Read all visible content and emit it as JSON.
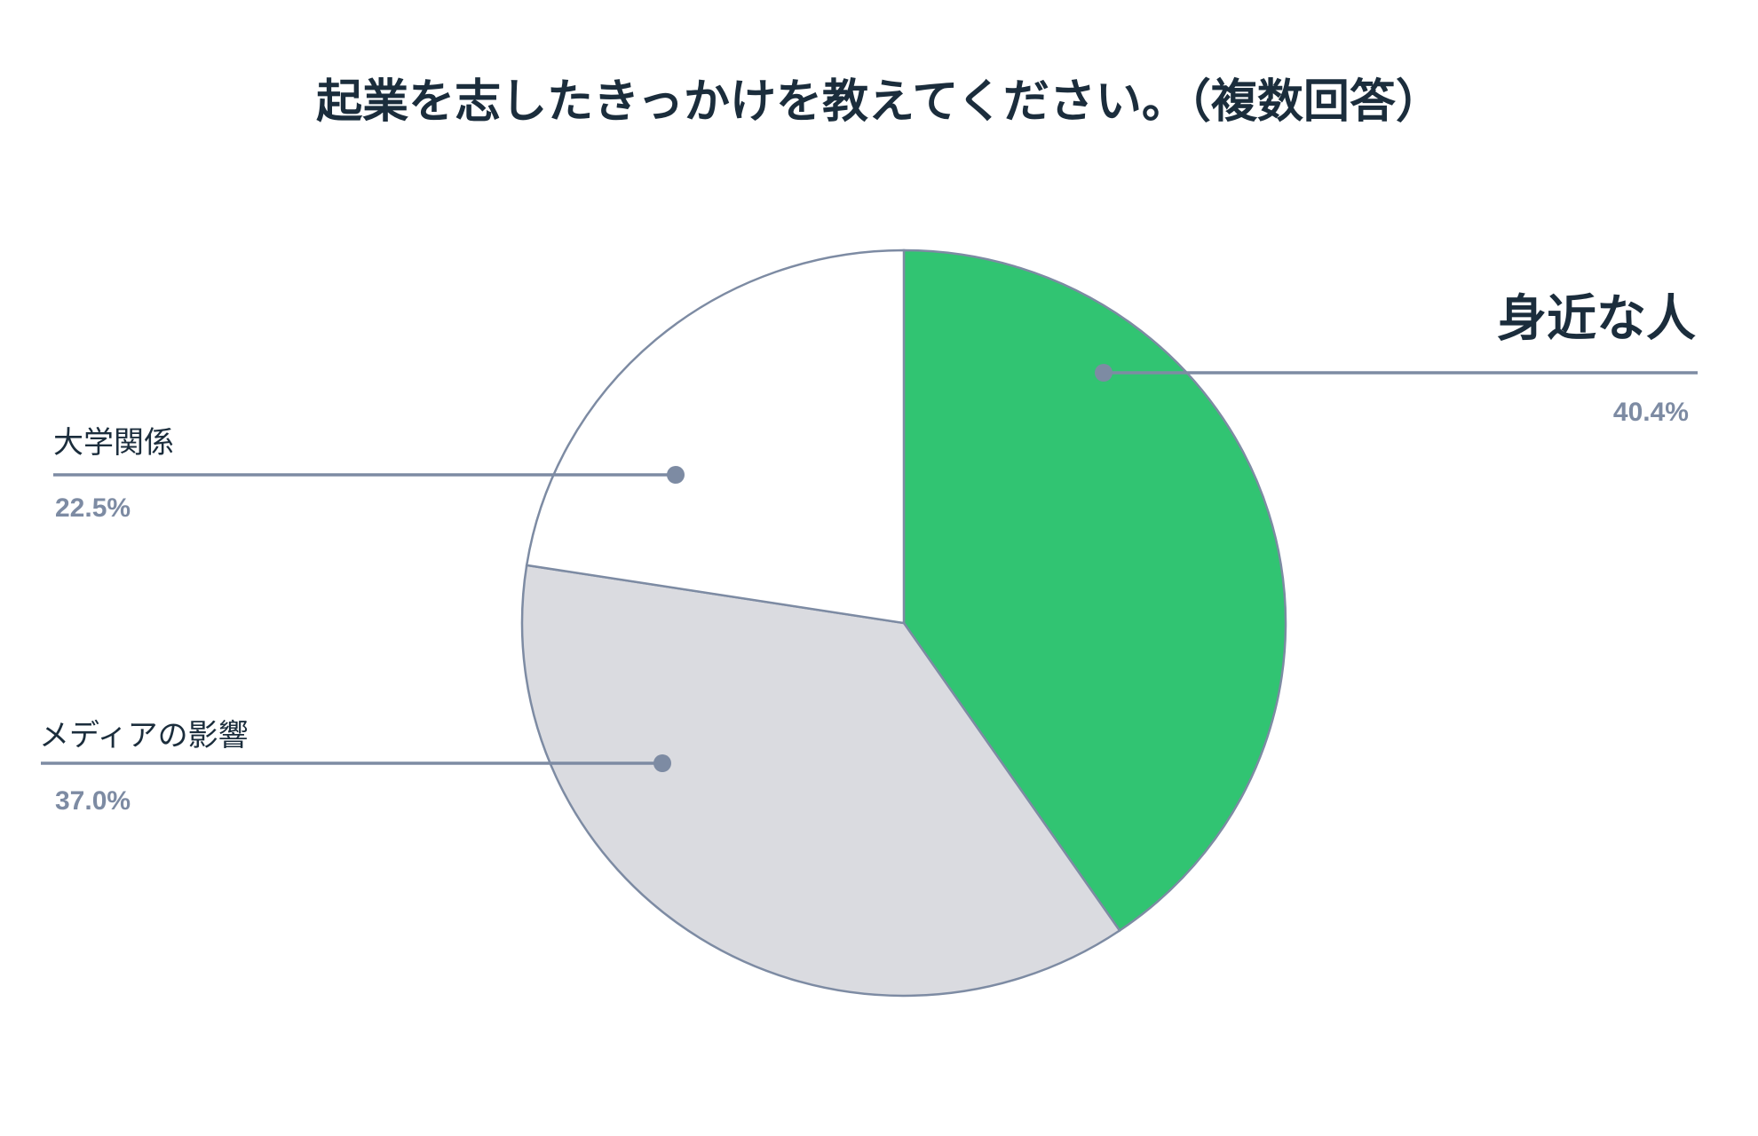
{
  "chart_data": {
    "type": "pie",
    "title": "起業を志したきっかけを教えてください。（複数回答）",
    "unit": "%",
    "slices": [
      {
        "label": "身近な人",
        "value": 40.4,
        "display": "40.4%",
        "color": "#31c472",
        "emphasis": true
      },
      {
        "label": "メディアの影響",
        "value": 37.0,
        "display": "37.0%",
        "color": "#dadbe0",
        "emphasis": false
      },
      {
        "label": "大学関係",
        "value": 22.5,
        "display": "22.5%",
        "color": "#ffffff",
        "emphasis": false
      }
    ],
    "outline_color": "#7d8ba3",
    "label_text_color": "#1b2d3c",
    "value_text_color": "#7d8ba3"
  }
}
